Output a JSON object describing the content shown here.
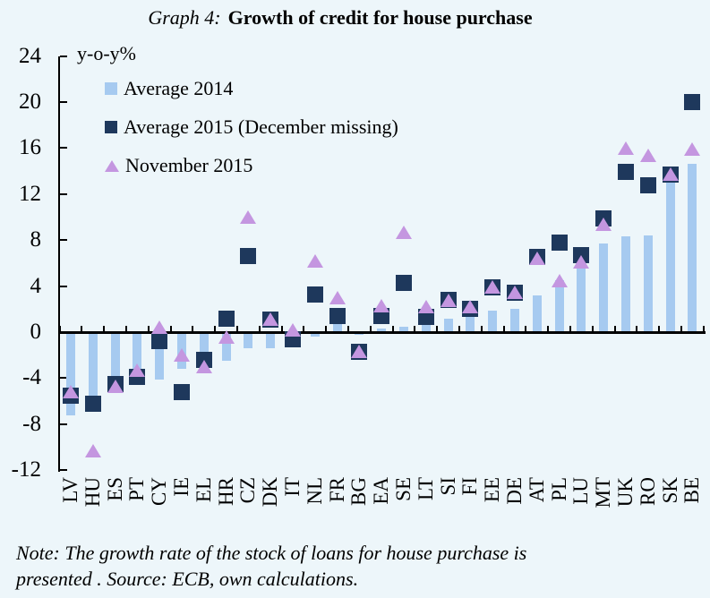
{
  "title": {
    "prefix": "Graph 4:",
    "main": "Growth of credit for house purchase"
  },
  "y_axis_label": "y-o-y%",
  "note_line1": "Note: The growth rate of the stock of loans for house purchase is",
  "note_line2": "presented . Source: ECB, own calculations.",
  "colors": {
    "background": "#edf6fa",
    "bar_2014": "#a6caf0",
    "square_2015": "#1e385c",
    "triangle_nov2015": "#c496e0",
    "axis": "#000000"
  },
  "chart_data": {
    "type": "bar",
    "title": "Graph 4: Growth of credit for house purchase",
    "ylabel": "y-o-y%",
    "ylim": [
      -12,
      24
    ],
    "yticks": [
      24,
      20,
      16,
      12,
      8,
      4,
      0,
      -4,
      -8,
      -12
    ],
    "grid": false,
    "legend_position": "upper-left-inside",
    "categories": [
      "LV",
      "HU",
      "ES",
      "PT",
      "CY",
      "IE",
      "EL",
      "HR",
      "CZ",
      "DK",
      "IT",
      "NL",
      "FR",
      "BG",
      "EA",
      "SE",
      "LT",
      "SI",
      "FI",
      "EE",
      "DE",
      "AT",
      "PL",
      "LU",
      "MT",
      "UK",
      "RO",
      "SK",
      "BE"
    ],
    "series": [
      {
        "name": "Average 2014",
        "marker": "bar",
        "color": "#a6caf0",
        "values": [
          -7.2,
          -6.0,
          -5.0,
          -4.0,
          -4.1,
          -3.2,
          -2.0,
          -2.5,
          -1.4,
          -1.4,
          -1.3,
          -0.4,
          0.9,
          -0.2,
          0.3,
          0.5,
          0.6,
          1.2,
          1.4,
          1.9,
          2.0,
          3.2,
          4.5,
          5.8,
          7.7,
          8.3,
          8.4,
          13.0,
          14.6
        ]
      },
      {
        "name": "Average 2015 (December missing)",
        "marker": "square",
        "color": "#1e385c",
        "values": [
          -5.5,
          -6.2,
          -4.5,
          -3.9,
          -0.8,
          -5.2,
          -2.4,
          1.2,
          6.6,
          1.1,
          -0.6,
          3.3,
          1.4,
          -1.7,
          1.4,
          4.3,
          1.3,
          2.8,
          2.0,
          3.9,
          3.4,
          6.5,
          7.8,
          6.7,
          9.9,
          13.9,
          12.8,
          13.7,
          20.0
        ]
      },
      {
        "name": "November 2015",
        "marker": "triangle",
        "color": "#c496e0",
        "values": [
          -5.2,
          -10.3,
          -4.7,
          -3.3,
          0.4,
          -2.0,
          -3.0,
          -0.4,
          10.0,
          1.1,
          0.2,
          6.2,
          3.0,
          -1.7,
          2.3,
          8.7,
          2.2,
          2.8,
          2.2,
          3.9,
          3.5,
          6.4,
          4.5,
          6.1,
          9.4,
          16.0,
          15.4,
          13.7,
          15.9
        ]
      }
    ]
  }
}
